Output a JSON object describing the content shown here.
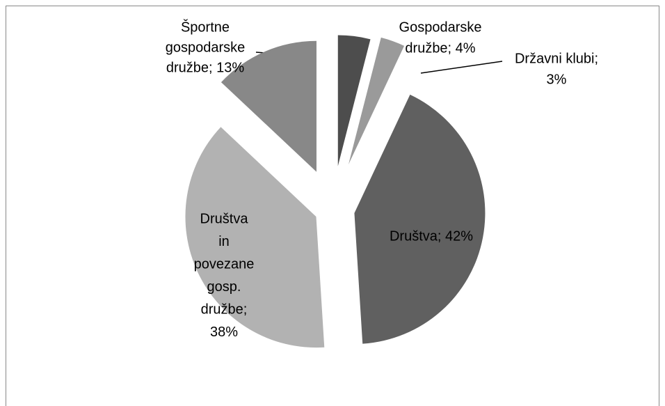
{
  "chart_data": {
    "type": "pie",
    "values": [
      4,
      3,
      42,
      38,
      13
    ],
    "value_labels": [
      [
        "Gospodarske",
        "družbe; 4%"
      ],
      [
        "Državni klubi;",
        "3%"
      ],
      [
        "Društva; 42%"
      ],
      [
        "Društva",
        "in",
        "povezane",
        "gosp.",
        "družbe;",
        "38%"
      ],
      [
        "Športne",
        "gospodarske",
        "družbe; 13%"
      ]
    ],
    "colors": [
      "#4d4d4d",
      "#9a9a9a",
      "#606060",
      "#b2b2b2",
      "#888888"
    ]
  }
}
